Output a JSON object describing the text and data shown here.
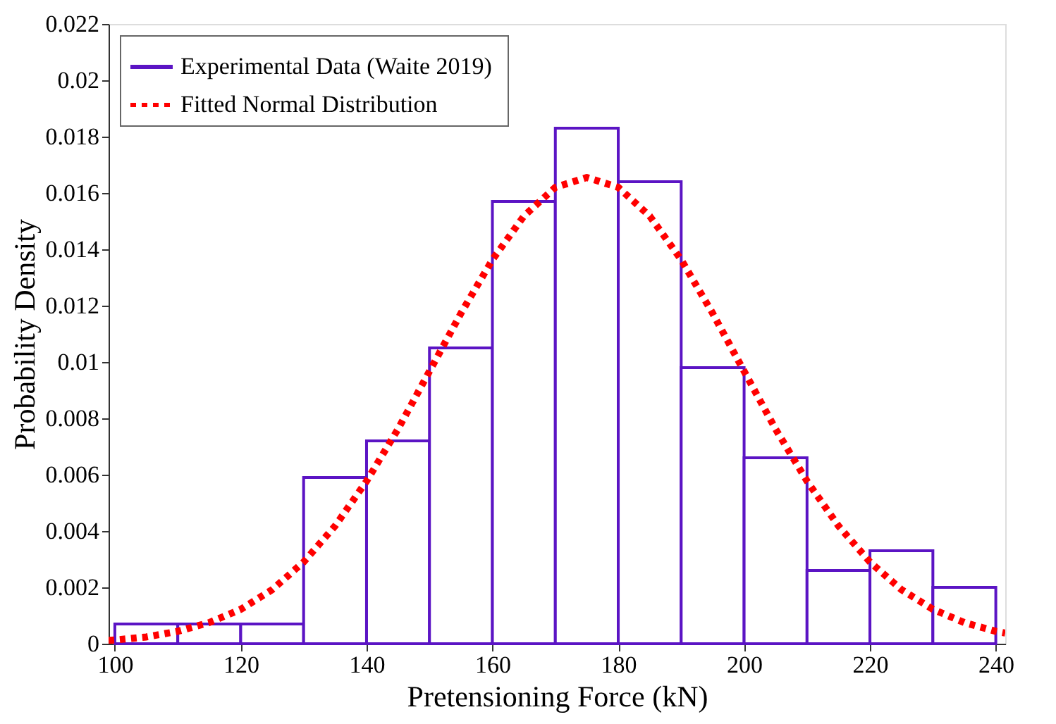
{
  "chart_data": {
    "type": "histogram",
    "xlabel": "Pretensioning Force (kN)",
    "ylabel": "Probability Density",
    "xlim": [
      99,
      241.5
    ],
    "xticks": [
      100,
      120,
      140,
      160,
      180,
      200,
      220,
      240
    ],
    "ylim": [
      0,
      0.022
    ],
    "yticks": [
      0,
      0.002,
      0.004,
      0.006,
      0.008,
      0.01,
      0.012,
      0.014,
      0.016,
      0.018,
      0.02,
      0.022
    ],
    "grid": false,
    "legend": "top left",
    "series": [
      {
        "name": "Experimental  Data (Waite 2019)",
        "type": "histogram",
        "color": "#5b14c4",
        "line_style": "solid",
        "bins": [
          100,
          110,
          120,
          130,
          140,
          150,
          160,
          170,
          180,
          190,
          200,
          210,
          220,
          230,
          240
        ],
        "values": [
          0.0007,
          0.0007,
          0.0007,
          0.0059,
          0.0072,
          0.0105,
          0.0157,
          0.0183,
          0.0164,
          0.0098,
          0.0066,
          0.0026,
          0.0033,
          0.002
        ]
      },
      {
        "name": "Fitted Normal Distribution",
        "type": "line",
        "color": "#ff0000",
        "line_style": "dotted",
        "x": [
          99,
          100,
          105,
          110,
          115,
          120,
          125,
          130,
          135,
          140,
          145,
          150,
          155,
          160,
          165,
          170,
          175,
          180,
          185,
          190,
          195,
          200,
          205,
          210,
          215,
          220,
          225,
          230,
          235,
          240,
          241.5
        ],
        "values": [
          0.00012,
          0.00013,
          0.00024,
          0.00044,
          0.00075,
          0.00122,
          0.00192,
          0.0029,
          0.00418,
          0.00577,
          0.00762,
          0.00967,
          0.01173,
          0.01363,
          0.01518,
          0.0162,
          0.01655,
          0.0162,
          0.01518,
          0.01363,
          0.01173,
          0.00967,
          0.00762,
          0.00577,
          0.00418,
          0.0029,
          0.00192,
          0.00122,
          0.00075,
          0.00044,
          0.00038
        ]
      }
    ]
  }
}
